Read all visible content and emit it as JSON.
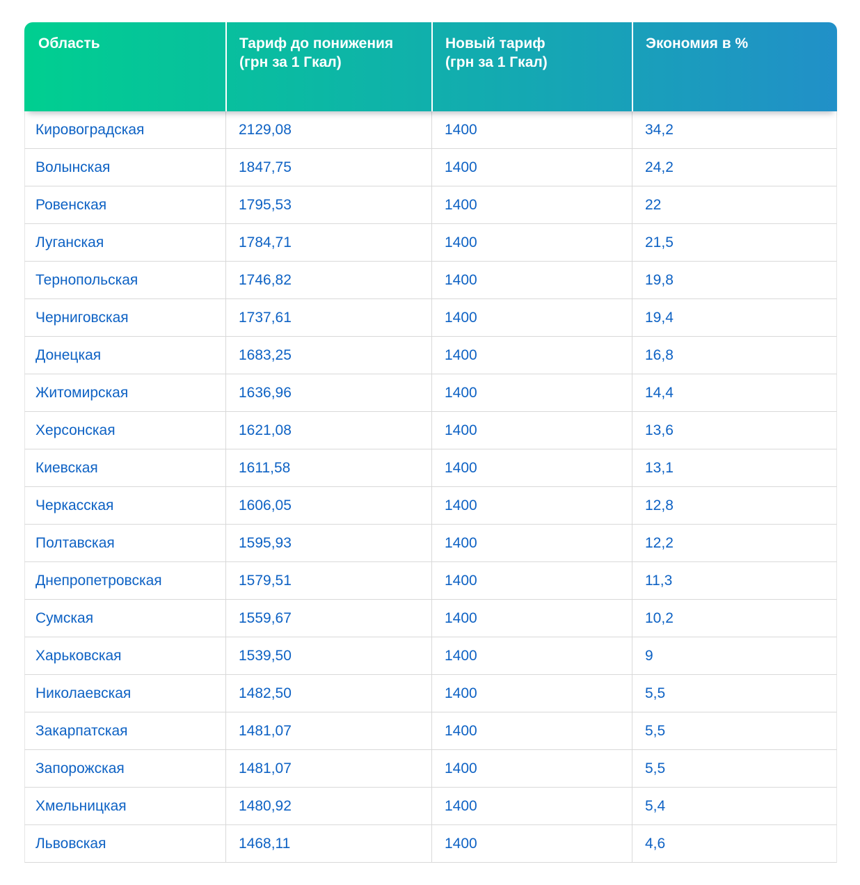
{
  "chart_data": {
    "type": "table",
    "columns": [
      {
        "label": "Область"
      },
      {
        "label": "Тариф до понижения\n(грн за 1 Гкал)"
      },
      {
        "label": "Новый тариф\n(грн за 1 Гкал)"
      },
      {
        "label": "Экономия в %"
      }
    ],
    "rows": [
      [
        "Кировоградская",
        "2129,08",
        "1400",
        "34,2"
      ],
      [
        "Волынская",
        "1847,75",
        "1400",
        "24,2"
      ],
      [
        "Ровенская",
        "1795,53",
        "1400",
        "22"
      ],
      [
        "Луганская",
        "1784,71",
        "1400",
        "21,5"
      ],
      [
        "Тернопольская",
        "1746,82",
        "1400",
        "19,8"
      ],
      [
        "Черниговская",
        "1737,61",
        "1400",
        "19,4"
      ],
      [
        "Донецкая",
        "1683,25",
        "1400",
        "16,8"
      ],
      [
        "Житомирская",
        "1636,96",
        "1400",
        "14,4"
      ],
      [
        "Херсонская",
        "1621,08",
        "1400",
        "13,6"
      ],
      [
        "Киевская",
        "1611,58",
        "1400",
        "13,1"
      ],
      [
        "Черкасская",
        "1606,05",
        "1400",
        "12,8"
      ],
      [
        "Полтавская",
        "1595,93",
        "1400",
        "12,2"
      ],
      [
        "Днепропетровская",
        "1579,51",
        "1400",
        "11,3"
      ],
      [
        "Сумская",
        "1559,67",
        "1400",
        "10,2"
      ],
      [
        "Харьковская",
        "1539,50",
        "1400",
        "9"
      ],
      [
        "Николаевская",
        "1482,50",
        "1400",
        "5,5"
      ],
      [
        "Закарпатская",
        "1481,07",
        "1400",
        "5,5"
      ],
      [
        "Запорожская",
        "1481,07",
        "1400",
        "5,5"
      ],
      [
        "Хмельницкая",
        "1480,92",
        "1400",
        "5,4"
      ],
      [
        "Львовская",
        "1468,11",
        "1400",
        "4,6"
      ]
    ]
  },
  "colors": {
    "header_gradient_left": "#00cf90",
    "header_gradient_right": "#2190c8",
    "header_text": "#ffffff",
    "body_text": "#0e62c4",
    "row_border": "#d9d9d9"
  }
}
